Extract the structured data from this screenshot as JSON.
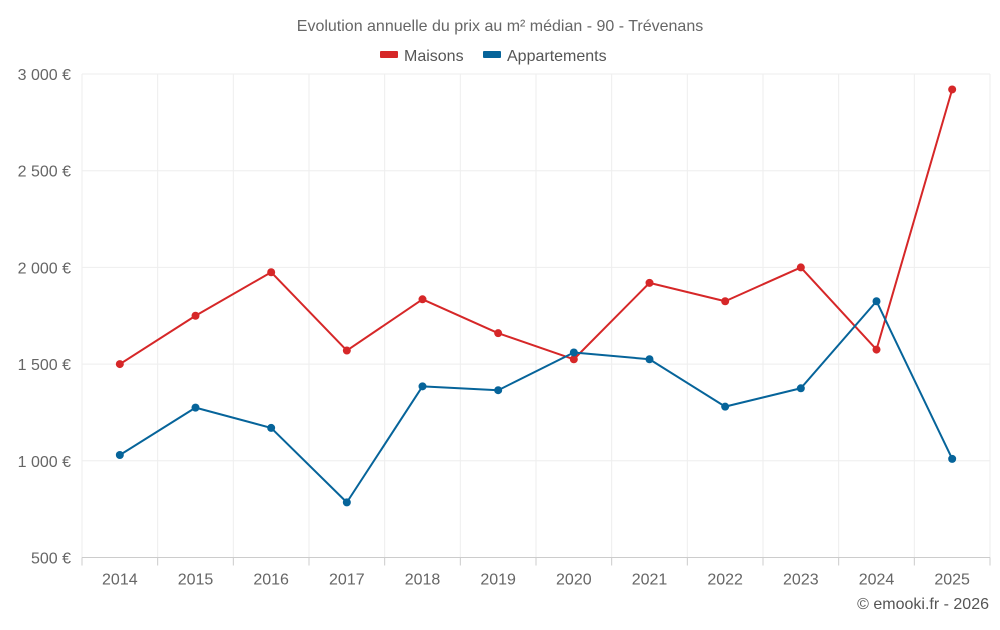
{
  "chart_data": {
    "type": "line",
    "title": "Evolution annuelle du prix au m² médian - 90 - Trévenans",
    "categories": [
      "2014",
      "2015",
      "2016",
      "2017",
      "2018",
      "2019",
      "2020",
      "2021",
      "2022",
      "2023",
      "2024",
      "2025"
    ],
    "series": [
      {
        "name": "Maisons",
        "color": "#d62728",
        "values": [
          1500,
          1750,
          1975,
          1570,
          1835,
          1660,
          1525,
          1920,
          1825,
          2000,
          1575,
          2920
        ]
      },
      {
        "name": "Appartements",
        "color": "#06649a",
        "values": [
          1030,
          1275,
          1170,
          785,
          1385,
          1365,
          1560,
          1525,
          1280,
          1375,
          1825,
          1010
        ]
      }
    ],
    "yticks": [
      500,
      1000,
      1500,
      2000,
      2500,
      3000
    ],
    "ytick_labels": [
      "500 €",
      "1 000 €",
      "1 500 €",
      "2 000 €",
      "2 500 €",
      "3 000 €"
    ],
    "ylim": [
      500,
      3000
    ],
    "xlabel": "",
    "ylabel": "",
    "grid": true,
    "legend_position": "top-center"
  },
  "credit": "© emooki.fr - 2026"
}
